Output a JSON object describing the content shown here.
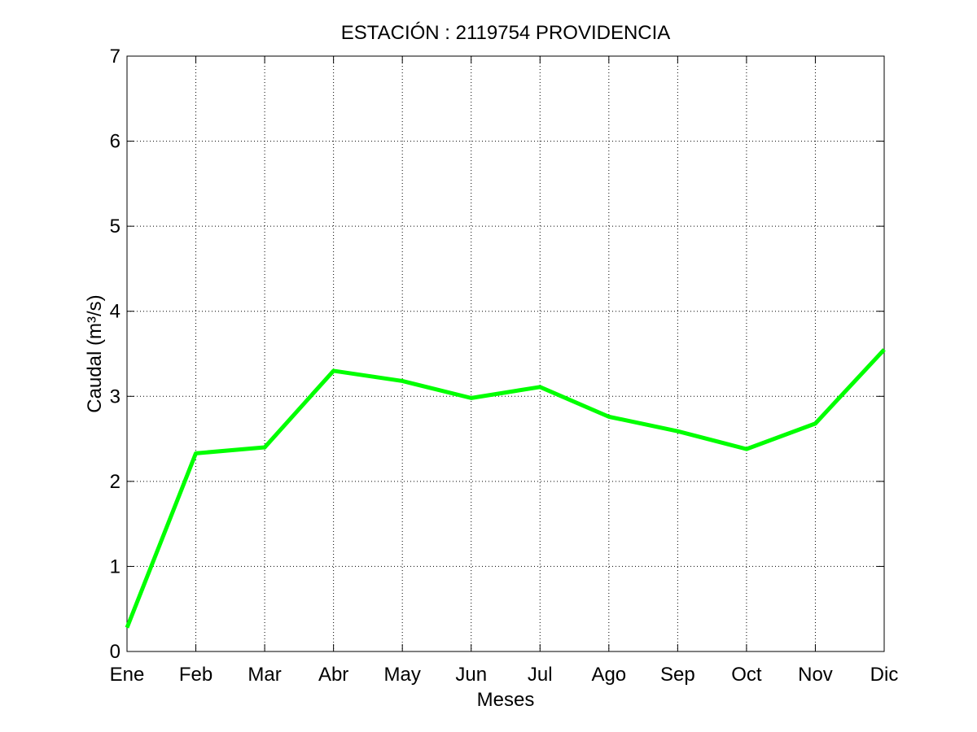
{
  "chart_data": {
    "type": "line",
    "title": "ESTACIÓN : 2119754  PROVIDENCIA",
    "xlabel": "Meses",
    "ylabel": "Caudal (m³/s)",
    "categories": [
      "Ene",
      "Feb",
      "Mar",
      "Abr",
      "May",
      "Jun",
      "Jul",
      "Ago",
      "Sep",
      "Oct",
      "Nov",
      "Dic"
    ],
    "series": [
      {
        "values": [
          0.28,
          2.33,
          2.4,
          3.3,
          3.18,
          2.98,
          3.11,
          2.76,
          2.59,
          2.38,
          2.68,
          3.55
        ],
        "color": "#00ff00"
      }
    ],
    "ylim": [
      0,
      7
    ],
    "yticks": [
      0,
      1,
      2,
      3,
      4,
      5,
      6,
      7
    ],
    "grid": true,
    "grid_style": "dotted",
    "legend": "none"
  }
}
